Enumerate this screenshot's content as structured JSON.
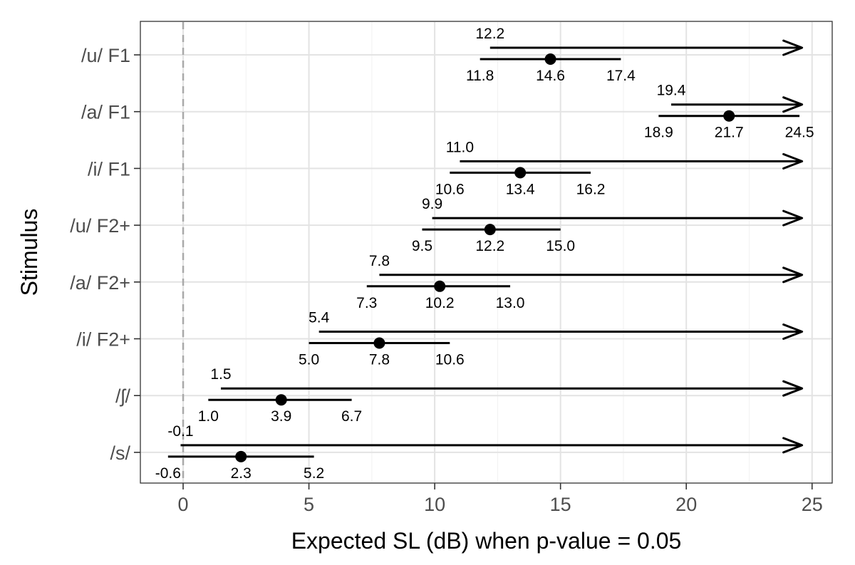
{
  "chart_data": {
    "type": "scatter",
    "title": "",
    "xlabel": "Expected SL (dB) when p-value = 0.05",
    "ylabel": "Stimulus",
    "xlim": [
      -1.7,
      25.8
    ],
    "xticks": [
      0,
      5,
      10,
      15,
      20,
      25
    ],
    "x_tick_labels": [
      "0",
      "5",
      "10",
      "15",
      "20",
      "25"
    ],
    "reference_line": 0,
    "arrow_end": 24.6,
    "grid": true,
    "legend": "none",
    "categories": [
      "/u/ F1",
      "/a/ F1",
      "/i/ F1",
      "/u/ F2+",
      "/a/ F2+",
      "/i/ F2+",
      "/ʃ/",
      "/s/"
    ],
    "series": [
      {
        "estimate": [
          14.6,
          21.7,
          13.4,
          12.2,
          10.2,
          7.8,
          3.9,
          2.3
        ],
        "ci_low": [
          11.8,
          18.9,
          10.6,
          9.5,
          7.3,
          5.0,
          1.0,
          -0.6
        ],
        "ci_high": [
          17.4,
          24.5,
          16.2,
          15.0,
          13.0,
          10.6,
          6.7,
          5.2
        ],
        "arrow_start": [
          12.2,
          19.4,
          11.0,
          9.9,
          7.8,
          5.4,
          1.5,
          -0.1
        ],
        "labels": {
          "estimate": [
            "14.6",
            "21.7",
            "13.4",
            "12.2",
            "10.2",
            "7.8",
            "3.9",
            "2.3"
          ],
          "ci_low": [
            "11.8",
            "18.9",
            "10.6",
            "9.5",
            "7.3",
            "5.0",
            "1.0",
            "-0.6"
          ],
          "ci_high": [
            "17.4",
            "24.5",
            "16.2",
            "15.0",
            "13.0",
            "10.6",
            "6.7",
            "5.2"
          ],
          "arrow_start": [
            "12.2",
            "19.4",
            "11.0",
            "9.9",
            "7.8",
            "5.4",
            "1.5",
            "-0.1"
          ]
        }
      }
    ]
  }
}
